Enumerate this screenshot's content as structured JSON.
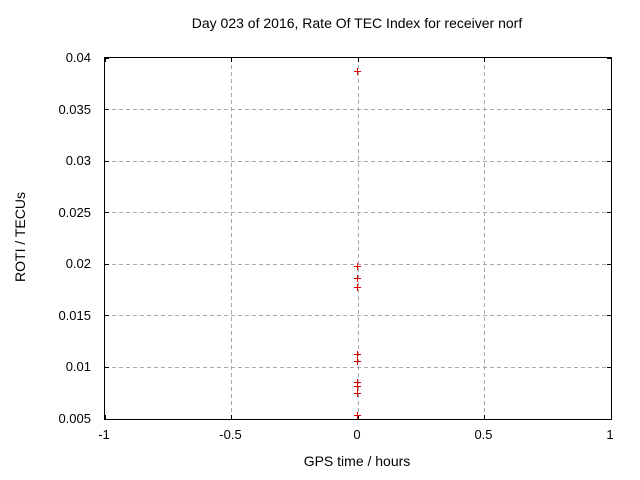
{
  "chart_data": {
    "type": "scatter",
    "title": "Day 023 of 2016, Rate Of TEC Index for receiver norf",
    "xlabel": "GPS time / hours",
    "ylabel": "ROTI / TECUs",
    "xlim": [
      -1,
      1
    ],
    "ylim": [
      0.005,
      0.04
    ],
    "xticks": [
      -1,
      -0.5,
      0,
      0.5,
      1
    ],
    "yticks": [
      0.005,
      0.01,
      0.015,
      0.02,
      0.025,
      0.03,
      0.035,
      0.04
    ],
    "grid": true,
    "legend_position": "none",
    "marker_style": "plus",
    "series": [
      {
        "name": "ROTI",
        "x": [
          0,
          0,
          0,
          0,
          0,
          0,
          0,
          0,
          0,
          0
        ],
        "y": [
          0.0386,
          0.0197,
          0.0186,
          0.0177,
          0.0112,
          0.0105,
          0.0085,
          0.0081,
          0.0074,
          0.0053
        ]
      }
    ],
    "colors": {
      "marker": "#e00000",
      "grid": "#a9a9a9",
      "axis": "#000000",
      "background": "#ffffff",
      "text": "#000000"
    }
  }
}
